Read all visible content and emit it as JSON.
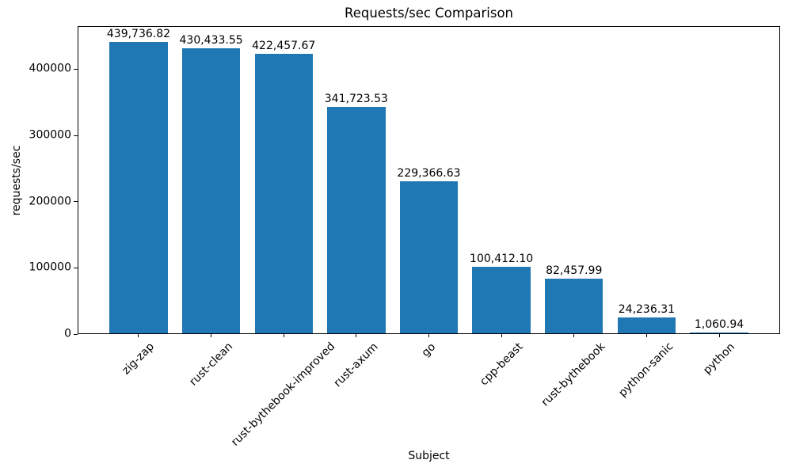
{
  "chart_data": {
    "type": "bar",
    "title": "Requests/sec Comparison",
    "xlabel": "Subject",
    "ylabel": "requests/sec",
    "categories": [
      "zig-zap",
      "rust-clean",
      "rust-bythebook-improved",
      "rust-axum",
      "go",
      "cpp-beast",
      "rust-bythebook",
      "python-sanic",
      "python"
    ],
    "values": [
      439736.82,
      430433.55,
      422457.67,
      341723.53,
      229366.63,
      100412.1,
      82457.99,
      24236.31,
      1060.94
    ],
    "value_labels": [
      "439,736.82",
      "430,433.55",
      "422,457.67",
      "341,723.53",
      "229,366.63",
      "100,412.10",
      "82,457.99",
      "24,236.31",
      "1,060.94"
    ],
    "yticks": [
      0,
      100000,
      200000,
      300000,
      400000
    ],
    "ytick_labels": [
      "0",
      "100000",
      "200000",
      "300000",
      "400000"
    ],
    "ylim": [
      0,
      465000
    ],
    "bar_color": "#1f77b4",
    "grid": false,
    "legend": null,
    "x_tick_rotation_deg": 45
  }
}
